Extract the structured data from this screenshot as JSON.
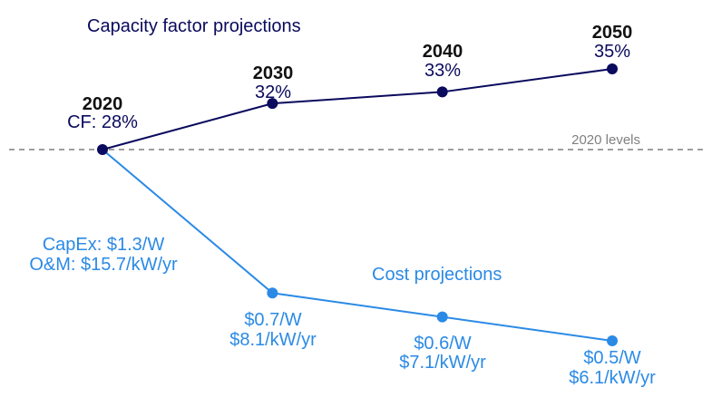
{
  "chart_data": {
    "type": "line",
    "x": [
      2020,
      2030,
      2040,
      2050
    ],
    "series": [
      {
        "name": "Capacity factor projections",
        "unit": "%",
        "color": "#0a0a5e",
        "values": [
          28,
          32,
          33,
          35
        ],
        "labels": [
          "CF: 28%",
          "32%",
          "33%",
          "35%"
        ]
      },
      {
        "name": "Cost projections",
        "color": "#2b8ae6",
        "capex_usd_per_w": [
          1.3,
          0.7,
          0.6,
          0.5
        ],
        "om_usd_per_kw_yr": [
          15.7,
          8.1,
          7.1,
          6.1
        ],
        "labels": [
          [
            "CapEx: $1.3/W",
            "O&M: $15.7/kW/yr"
          ],
          [
            "$0.7/W",
            "$8.1/kW/yr"
          ],
          [
            "$0.6/W",
            "$7.1/kW/yr"
          ],
          [
            "$0.5/W",
            "$6.1/kW/yr"
          ]
        ]
      }
    ],
    "year_labels": [
      "2020",
      "2030",
      "2040",
      "2050"
    ],
    "reference_line": {
      "label": "2020 levels",
      "color": "#7f7f7f"
    },
    "text_color": "#111111"
  }
}
